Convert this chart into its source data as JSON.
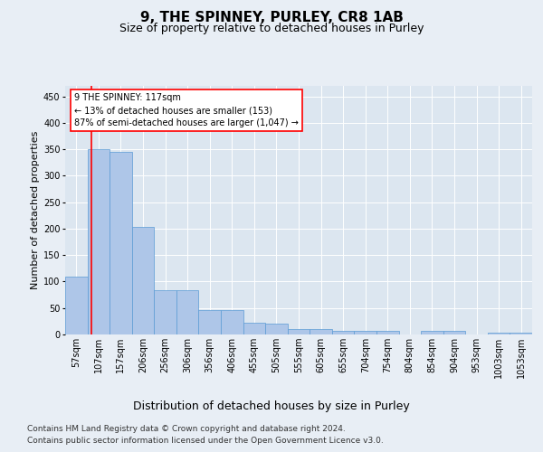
{
  "title": "9, THE SPINNEY, PURLEY, CR8 1AB",
  "subtitle": "Size of property relative to detached houses in Purley",
  "xlabel": "Distribution of detached houses by size in Purley",
  "ylabel": "Number of detached properties",
  "bar_heights": [
    110,
    350,
    345,
    203,
    84,
    84,
    46,
    46,
    22,
    20,
    10,
    10,
    7,
    7,
    7,
    0,
    7,
    7,
    0,
    4,
    4
  ],
  "bar_labels": [
    "57sqm",
    "107sqm",
    "157sqm",
    "206sqm",
    "256sqm",
    "306sqm",
    "356sqm",
    "406sqm",
    "455sqm",
    "505sqm",
    "555sqm",
    "605sqm",
    "655sqm",
    "704sqm",
    "754sqm",
    "804sqm",
    "854sqm",
    "904sqm",
    "953sqm",
    "1003sqm",
    "1053sqm"
  ],
  "bar_color": "#aec6e8",
  "bar_edge_color": "#5b9bd5",
  "bar_width": 1.0,
  "ylim": [
    0,
    470
  ],
  "yticks": [
    0,
    50,
    100,
    150,
    200,
    250,
    300,
    350,
    400,
    450
  ],
  "annotation_text": "9 THE SPINNEY: 117sqm\n← 13% of detached houses are smaller (153)\n87% of semi-detached houses are larger (1,047) →",
  "annotation_box_color": "white",
  "annotation_box_edge": "red",
  "background_color": "#e8eef5",
  "plot_background": "#dce6f0",
  "footer_line1": "Contains HM Land Registry data © Crown copyright and database right 2024.",
  "footer_line2": "Contains public sector information licensed under the Open Government Licence v3.0.",
  "title_fontsize": 11,
  "subtitle_fontsize": 9,
  "xlabel_fontsize": 9,
  "ylabel_fontsize": 8,
  "tick_fontsize": 7,
  "footer_fontsize": 6.5,
  "property_size_sqm": 117
}
